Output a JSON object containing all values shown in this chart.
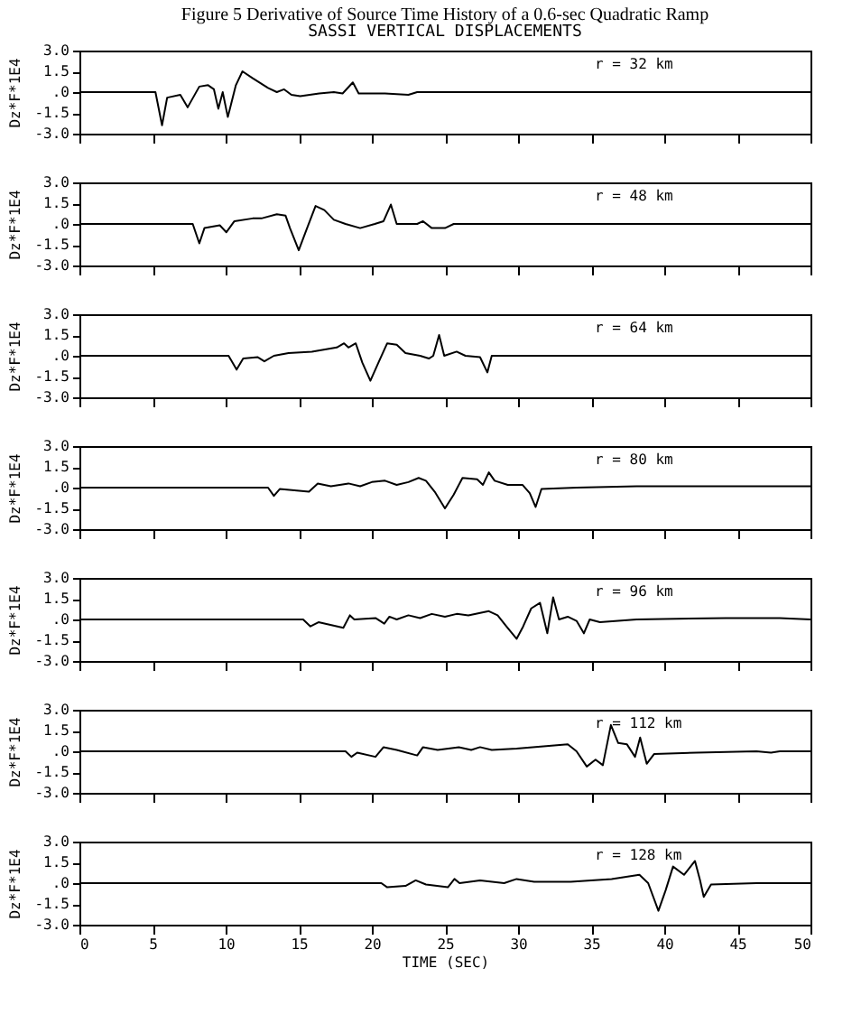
{
  "chart_data": [
    {
      "type": "line",
      "title": "Figure 5  Derivative of Source Time History of a 0.6-sec Quadratic Ramp",
      "subtitle": "SASSI VERTICAL DISPLACEMENTS",
      "ylabel": "Dz*F*1E4",
      "annotations": [
        "r = 32 km"
      ],
      "color": "#000000",
      "grid": false,
      "tick_labels": "y",
      "xlim": [
        0,
        50
      ],
      "xticks": [
        0,
        5,
        10,
        15,
        20,
        25,
        30,
        35,
        40,
        45,
        50
      ],
      "ylim": [
        -3,
        3
      ],
      "yticks": [
        {
          "value": 3,
          "label": "3.0"
        },
        {
          "value": 1.5,
          "label": "1.5"
        },
        {
          "value": 0,
          "label": ".0"
        },
        {
          "value": -1.5,
          "label": "-1.5"
        },
        {
          "value": -3,
          "label": "-3.0"
        }
      ],
      "x": [
        0,
        5.2,
        5.65,
        6.0,
        6.9,
        7.4,
        8.2,
        8.8,
        9.2,
        9.5,
        9.8,
        10.15,
        10.7,
        11.15,
        11.85,
        12.9,
        13.5,
        14.0,
        14.5,
        15.1,
        16.4,
        17.4,
        18.0,
        18.7,
        19.1,
        20.9,
        22.5,
        23.1,
        50
      ],
      "values": [
        0,
        0,
        -2.4,
        -0.4,
        -0.2,
        -1.1,
        0.4,
        0.5,
        0.2,
        -1.2,
        0,
        -1.8,
        0.5,
        1.5,
        1.0,
        0.3,
        0,
        0.2,
        -0.2,
        -0.3,
        -0.1,
        0,
        -0.1,
        0.7,
        -0.1,
        -0.1,
        -0.2,
        0,
        0
      ]
    },
    {
      "type": "line",
      "ylabel": "Dz*F*1E4",
      "annotations": [
        "r = 48 km"
      ],
      "color": "#000000",
      "grid": false,
      "tick_labels": "y",
      "xlim": [
        0,
        50
      ],
      "xticks": [
        0,
        5,
        10,
        15,
        20,
        25,
        30,
        35,
        40,
        45,
        50
      ],
      "ylim": [
        -3,
        3
      ],
      "yticks": [
        {
          "value": 3,
          "label": "3.0"
        },
        {
          "value": 1.5,
          "label": "1.5"
        },
        {
          "value": 0,
          "label": ".0"
        },
        {
          "value": -1.5,
          "label": "-1.5"
        },
        {
          "value": -3,
          "label": "-3.0"
        }
      ],
      "x": [
        0,
        7.75,
        8.2,
        8.55,
        9.6,
        10.05,
        10.6,
        11.85,
        12.45,
        13.5,
        14.1,
        14.4,
        15.0,
        15.5,
        16.15,
        16.75,
        17.4,
        18.2,
        19.2,
        20.2,
        20.8,
        21.3,
        21.7,
        23.1,
        23.5,
        24.1,
        25.0,
        25.6,
        50
      ],
      "values": [
        0,
        0,
        -1.4,
        -0.3,
        -0.1,
        -0.6,
        0.2,
        0.4,
        0.4,
        0.7,
        0.6,
        -0.3,
        -1.9,
        -0.5,
        1.3,
        1.0,
        0.3,
        0,
        -0.3,
        0,
        0.2,
        1.4,
        0,
        0,
        0.2,
        -0.3,
        -0.3,
        0,
        0
      ]
    },
    {
      "type": "line",
      "ylabel": "Dz*F*1E4",
      "annotations": [
        "r = 64 km"
      ],
      "color": "#000000",
      "grid": false,
      "tick_labels": "y",
      "xlim": [
        0,
        50
      ],
      "xticks": [
        0,
        5,
        10,
        15,
        20,
        25,
        30,
        35,
        40,
        45,
        50
      ],
      "ylim": [
        -3,
        3
      ],
      "yticks": [
        {
          "value": 3,
          "label": "3.0"
        },
        {
          "value": 1.5,
          "label": "1.5"
        },
        {
          "value": 0,
          "label": ".0"
        },
        {
          "value": -1.5,
          "label": "-1.5"
        },
        {
          "value": -3,
          "label": "-3.0"
        }
      ],
      "x": [
        0,
        10.2,
        10.75,
        11.2,
        12.2,
        12.65,
        13.3,
        14.3,
        15.9,
        17.6,
        18.1,
        18.4,
        18.9,
        19.35,
        19.9,
        20.45,
        21.05,
        21.7,
        22.3,
        23.3,
        23.9,
        24.2,
        24.6,
        24.95,
        25.8,
        26.4,
        27.4,
        27.9,
        28.2,
        50
      ],
      "values": [
        0,
        0,
        -1.0,
        -0.2,
        -0.1,
        -0.4,
        0,
        0.2,
        0.3,
        0.6,
        0.9,
        0.6,
        0.9,
        -0.5,
        -1.8,
        -0.5,
        0.9,
        0.8,
        0.2,
        0,
        -0.2,
        0,
        1.5,
        0,
        0.3,
        0,
        -0.1,
        -1.2,
        0,
        0
      ]
    },
    {
      "type": "line",
      "ylabel": "Dz*F*1E4",
      "annotations": [
        "r = 80 km"
      ],
      "color": "#000000",
      "grid": false,
      "tick_labels": "y",
      "xlim": [
        0,
        50
      ],
      "xticks": [
        0,
        5,
        10,
        15,
        20,
        25,
        30,
        35,
        40,
        45,
        50
      ],
      "ylim": [
        -3,
        3
      ],
      "yticks": [
        {
          "value": 3,
          "label": "3.0"
        },
        {
          "value": 1.5,
          "label": "1.5"
        },
        {
          "value": 0,
          "label": ".0"
        },
        {
          "value": -1.5,
          "label": "-1.5"
        },
        {
          "value": -3,
          "label": "-3.0"
        }
      ],
      "x": [
        0,
        12.9,
        13.3,
        13.7,
        14.7,
        15.7,
        16.3,
        17.2,
        18.4,
        19.2,
        20.0,
        20.9,
        21.7,
        22.5,
        23.2,
        23.7,
        24.3,
        25.0,
        25.6,
        26.2,
        27.2,
        27.6,
        28.0,
        28.4,
        29.3,
        30.3,
        30.8,
        31.2,
        31.6,
        34.0,
        38.1,
        50
      ],
      "values": [
        0,
        0,
        -0.6,
        -0.1,
        -0.2,
        -0.3,
        0.3,
        0.1,
        0.3,
        0.1,
        0.4,
        0.5,
        0.2,
        0.4,
        0.7,
        0.5,
        -0.3,
        -1.5,
        -0.5,
        0.7,
        0.6,
        0.2,
        1.1,
        0.5,
        0.2,
        0.2,
        -0.4,
        -1.4,
        -0.1,
        0,
        0.1,
        0.1
      ]
    },
    {
      "type": "line",
      "ylabel": "Dz*F*1E4",
      "annotations": [
        "r = 96 km"
      ],
      "color": "#000000",
      "grid": false,
      "tick_labels": "y",
      "xlim": [
        0,
        50
      ],
      "xticks": [
        0,
        5,
        10,
        15,
        20,
        25,
        30,
        35,
        40,
        45,
        50
      ],
      "ylim": [
        -3,
        3
      ],
      "yticks": [
        {
          "value": 3,
          "label": "3.0"
        },
        {
          "value": 1.5,
          "label": "1.5"
        },
        {
          "value": 0,
          "label": ".0"
        },
        {
          "value": -1.5,
          "label": "-1.5"
        },
        {
          "value": -3,
          "label": "-3.0"
        }
      ],
      "x": [
        0,
        15.3,
        15.8,
        16.35,
        18.05,
        18.5,
        18.8,
        20.25,
        20.85,
        21.2,
        21.7,
        22.5,
        23.3,
        24.1,
        25.0,
        25.8,
        26.6,
        28.0,
        28.6,
        29.2,
        29.9,
        30.35,
        30.9,
        31.5,
        32.0,
        32.4,
        32.8,
        33.4,
        34.0,
        34.5,
        34.9,
        35.6,
        38.1,
        44.2,
        47.9,
        50
      ],
      "values": [
        0,
        0,
        -0.5,
        -0.2,
        -0.6,
        0.3,
        0,
        0.1,
        -0.3,
        0.2,
        0,
        0.3,
        0.1,
        0.4,
        0.2,
        0.4,
        0.3,
        0.6,
        0.3,
        -0.5,
        -1.4,
        -0.5,
        0.8,
        1.2,
        -1.0,
        1.6,
        0,
        0.2,
        -0.1,
        -1.0,
        0,
        -0.2,
        0,
        0.1,
        0.1,
        0
      ]
    },
    {
      "type": "line",
      "ylabel": "Dz*F*1E4",
      "annotations": [
        "r = 112 km"
      ],
      "color": "#000000",
      "grid": false,
      "tick_labels": "y",
      "xlim": [
        0,
        50
      ],
      "xticks": [
        0,
        5,
        10,
        15,
        20,
        25,
        30,
        35,
        40,
        45,
        50
      ],
      "ylim": [
        -3,
        3
      ],
      "yticks": [
        {
          "value": 3,
          "label": "3.0"
        },
        {
          "value": 1.5,
          "label": "1.5"
        },
        {
          "value": 0,
          "label": ".0"
        },
        {
          "value": -1.5,
          "label": "-1.5"
        },
        {
          "value": -3,
          "label": "-3.0"
        }
      ],
      "x": [
        0,
        18.2,
        18.6,
        19.0,
        20.25,
        20.8,
        21.7,
        23.1,
        23.5,
        24.5,
        25.95,
        26.8,
        27.4,
        28.2,
        29.9,
        33.4,
        34.0,
        34.7,
        35.3,
        35.8,
        36.35,
        36.85,
        37.45,
        38.0,
        38.35,
        38.8,
        39.3,
        42.2,
        46.3,
        47.3,
        47.9,
        50
      ],
      "values": [
        0,
        0,
        -0.4,
        -0.1,
        -0.4,
        0.3,
        0.1,
        -0.3,
        0.3,
        0.1,
        0.3,
        0.1,
        0.3,
        0.1,
        0.2,
        0.5,
        0,
        -1.1,
        -0.6,
        -1.0,
        1.9,
        0.6,
        0.5,
        -0.4,
        1.0,
        -0.9,
        -0.2,
        -0.1,
        0,
        -0.1,
        0,
        0
      ]
    },
    {
      "type": "line",
      "ylabel": "Dz*F*1E4",
      "xlabel": "TIME (SEC)",
      "annotations": [
        "r = 128 km"
      ],
      "color": "#000000",
      "grid": false,
      "xlim": [
        0,
        50
      ],
      "xticks": [
        0,
        5,
        10,
        15,
        20,
        25,
        30,
        35,
        40,
        45,
        50
      ],
      "ylim": [
        -3,
        3
      ],
      "yticks": [
        {
          "value": 3,
          "label": "3.0"
        },
        {
          "value": 1.5,
          "label": "1.5"
        },
        {
          "value": 0,
          "label": ".0"
        },
        {
          "value": -1.5,
          "label": "-1.5"
        },
        {
          "value": -3,
          "label": "-3.0"
        }
      ],
      "x": [
        0,
        20.65,
        21.05,
        22.3,
        23.0,
        23.7,
        25.2,
        25.65,
        26.0,
        27.4,
        29.05,
        29.9,
        31.1,
        33.6,
        36.4,
        38.3,
        38.9,
        39.6,
        40.1,
        40.6,
        41.35,
        42.1,
        42.45,
        42.7,
        43.2,
        46.3,
        50
      ],
      "values": [
        0,
        0,
        -0.3,
        -0.2,
        0.2,
        -0.1,
        -0.3,
        0.3,
        0,
        0.2,
        0,
        0.3,
        0.1,
        0.1,
        0.3,
        0.6,
        0,
        -2.0,
        -0.5,
        1.2,
        0.6,
        1.6,
        0.2,
        -1.0,
        -0.1,
        0,
        0
      ]
    }
  ]
}
